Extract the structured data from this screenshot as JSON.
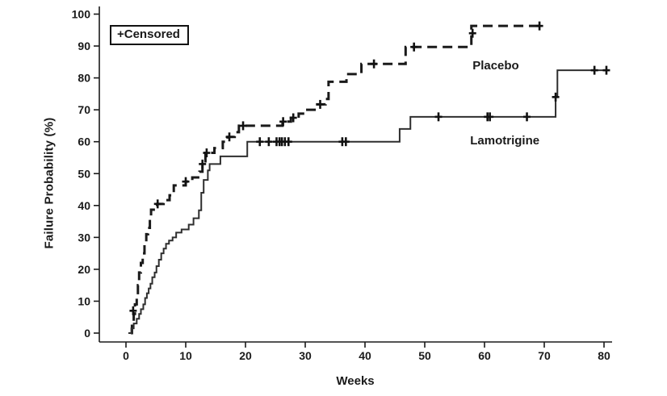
{
  "page": {
    "background": "#ffffff"
  },
  "chart_data": {
    "type": "line",
    "subtype": "kaplan_meier_step",
    "title": "",
    "xlabel": "Weeks",
    "ylabel": "Failure Probability (%)",
    "xlim": [
      0,
      80
    ],
    "ylim": [
      0,
      100
    ],
    "xticks": [
      0,
      10,
      20,
      30,
      40,
      50,
      60,
      70,
      80
    ],
    "yticks": [
      0,
      10,
      20,
      30,
      40,
      50,
      60,
      70,
      80,
      90,
      100
    ],
    "grid": false,
    "axis_color": "#1a1a1a",
    "legend": {
      "label": "+Censored",
      "position": "top-left"
    },
    "censor_marker": "plus",
    "series": [
      {
        "name": "Placebo",
        "line_style": "dashed",
        "dash_pattern": [
          12,
          7
        ],
        "line_width": 3,
        "color": "#1a1a1a",
        "label_pos": {
          "week": 58,
          "pct": 86
        },
        "end_week": 69.6,
        "points": [
          [
            0.8,
            0
          ],
          [
            1.0,
            3
          ],
          [
            1.3,
            6
          ],
          [
            1.5,
            9
          ],
          [
            1.8,
            12
          ],
          [
            2.0,
            15
          ],
          [
            2.2,
            19
          ],
          [
            2.5,
            22
          ],
          [
            2.8,
            25
          ],
          [
            3.1,
            28
          ],
          [
            3.4,
            31
          ],
          [
            3.7,
            33
          ],
          [
            4.0,
            36
          ],
          [
            4.2,
            38.7
          ],
          [
            5.2,
            40.5
          ],
          [
            6.3,
            41.7
          ],
          [
            7.3,
            43.2
          ],
          [
            8.0,
            46.3
          ],
          [
            10.0,
            47.5
          ],
          [
            11.1,
            48.8
          ],
          [
            12.3,
            50.6
          ],
          [
            12.8,
            53
          ],
          [
            13.3,
            56.5
          ],
          [
            14.8,
            58
          ],
          [
            16.2,
            60
          ],
          [
            17.0,
            61.5
          ],
          [
            18.2,
            63
          ],
          [
            18.9,
            65
          ],
          [
            26.2,
            66.3
          ],
          [
            27.6,
            67.5
          ],
          [
            28.9,
            68.8
          ],
          [
            30.0,
            70
          ],
          [
            32.0,
            71.7
          ],
          [
            33.4,
            73.4
          ],
          [
            33.9,
            78.8
          ],
          [
            36.9,
            81.2
          ],
          [
            39.4,
            84.4
          ],
          [
            46.8,
            89.7
          ],
          [
            57.8,
            96.3
          ]
        ],
        "censored": [
          [
            1.2,
            7
          ],
          [
            5.3,
            40.5
          ],
          [
            10.0,
            47.5
          ],
          [
            12.8,
            53
          ],
          [
            13.5,
            56.5
          ],
          [
            17.3,
            61.5
          ],
          [
            19.6,
            65
          ],
          [
            26.3,
            66.3
          ],
          [
            28.0,
            67.5
          ],
          [
            32.5,
            71.7
          ],
          [
            41.5,
            84.4
          ],
          [
            48.2,
            89.7
          ],
          [
            58.0,
            94.0
          ],
          [
            69.2,
            96.3
          ]
        ]
      },
      {
        "name": "Lamotrigine",
        "line_style": "solid",
        "dash_pattern": null,
        "line_width": 2,
        "color": "#2e2e2e",
        "label_pos": {
          "week": 57.6,
          "pct": 62.5
        },
        "end_week": 80.8,
        "points": [
          [
            0.4,
            0
          ],
          [
            0.9,
            1.5
          ],
          [
            1.3,
            3
          ],
          [
            1.8,
            4.5
          ],
          [
            2.2,
            6
          ],
          [
            2.5,
            7.5
          ],
          [
            2.9,
            9
          ],
          [
            3.2,
            11
          ],
          [
            3.5,
            12.5
          ],
          [
            3.8,
            14
          ],
          [
            4.1,
            15.5
          ],
          [
            4.4,
            17.5
          ],
          [
            4.8,
            19
          ],
          [
            5.1,
            21
          ],
          [
            5.5,
            23
          ],
          [
            5.9,
            25
          ],
          [
            6.3,
            26.5
          ],
          [
            6.7,
            28
          ],
          [
            7.2,
            29
          ],
          [
            7.8,
            30
          ],
          [
            8.4,
            31.5
          ],
          [
            9.3,
            32.5
          ],
          [
            10.5,
            34
          ],
          [
            11.3,
            36
          ],
          [
            12.2,
            38.5
          ],
          [
            12.6,
            44
          ],
          [
            13.0,
            48
          ],
          [
            13.7,
            51
          ],
          [
            14.0,
            53
          ],
          [
            15.8,
            55.4
          ],
          [
            20.3,
            60
          ],
          [
            45.8,
            64
          ],
          [
            47.6,
            67.8
          ],
          [
            71.9,
            74
          ],
          [
            72.2,
            82.4
          ]
        ],
        "censored": [
          [
            22.4,
            60
          ],
          [
            23.9,
            60
          ],
          [
            25.2,
            60
          ],
          [
            25.7,
            60
          ],
          [
            26.1,
            60
          ],
          [
            26.6,
            60
          ],
          [
            27.2,
            60
          ],
          [
            36.2,
            60
          ],
          [
            36.8,
            60
          ],
          [
            52.3,
            67.8
          ],
          [
            60.5,
            67.8
          ],
          [
            60.9,
            67.8
          ],
          [
            67.1,
            67.8
          ],
          [
            71.9,
            74
          ],
          [
            78.4,
            82.4
          ],
          [
            80.4,
            82.4
          ]
        ]
      }
    ]
  }
}
